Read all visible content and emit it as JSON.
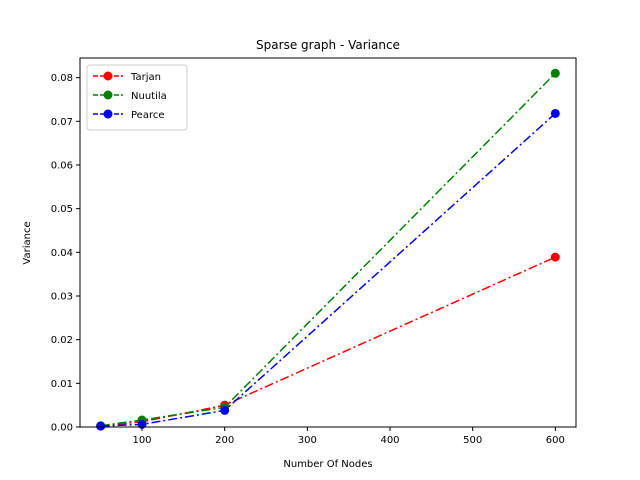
{
  "chart_data": {
    "type": "line",
    "title": "Sparse graph - Variance",
    "xlabel": "Number Of Nodes",
    "ylabel": "Variance",
    "x": [
      50,
      100,
      200,
      600
    ],
    "xlim": [
      25,
      625
    ],
    "ylim": [
      0,
      0.0845
    ],
    "xticks": [
      100,
      200,
      300,
      400,
      500,
      600
    ],
    "yticks": [
      0.0,
      0.01,
      0.02,
      0.03,
      0.04,
      0.05,
      0.06,
      0.07,
      0.08
    ],
    "ytick_labels": [
      "0.00",
      "0.01",
      "0.02",
      "0.03",
      "0.04",
      "0.05",
      "0.06",
      "0.07",
      "0.08"
    ],
    "grid": false,
    "legend_position": "top-left",
    "series": [
      {
        "name": "Tarjan",
        "color": "#ff0000",
        "values": [
          0.0002,
          0.0012,
          0.005,
          0.0389
        ]
      },
      {
        "name": "Nuutila",
        "color": "#008000",
        "values": [
          0.0003,
          0.0016,
          0.0045,
          0.081
        ]
      },
      {
        "name": "Pearce",
        "color": "#0000ff",
        "values": [
          0.0002,
          0.0006,
          0.0038,
          0.0718
        ]
      }
    ]
  }
}
